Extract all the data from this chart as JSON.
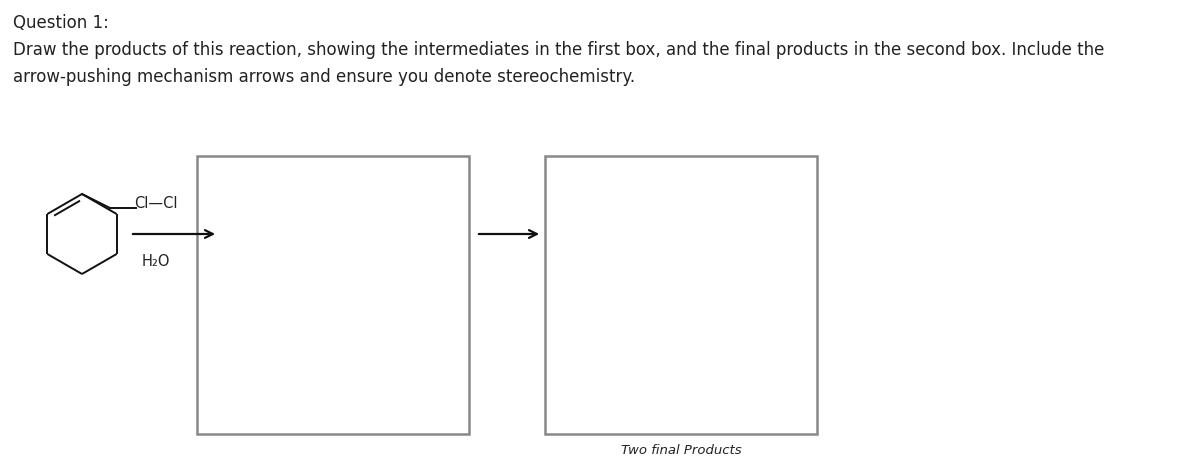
{
  "title_line1": "Question 1:",
  "title_line2": "Draw the products of this reaction, showing the intermediates in the first box, and the final products in the second box. Include the",
  "title_line3": "arrow-pushing mechanism arrows and ensure you denote stereochemistry.",
  "reagent_cl_cl": "Cl—Cl",
  "reagent_h2o": "H₂O",
  "box2_label": "Two final Products",
  "bg_color": "#ffffff",
  "text_color": "#222222",
  "box_color": "#888888",
  "arrow_color": "#111111",
  "fig_width": 12.0,
  "fig_height": 4.76,
  "dpi": 100
}
